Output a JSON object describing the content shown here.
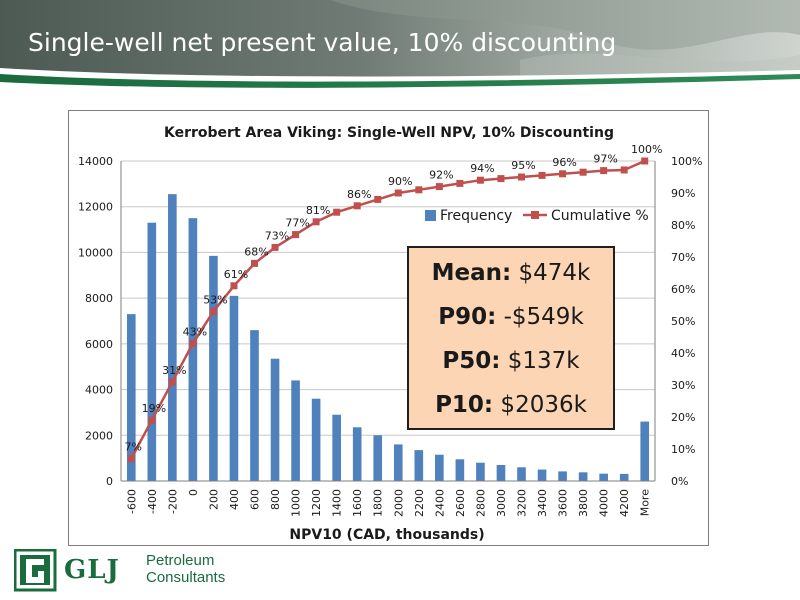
{
  "slide": {
    "title": "Single-well net present value, 10% discounting"
  },
  "chart_data": {
    "type": "bar",
    "title": "Kerrobert Area Viking: Single-Well NPV, 10% Discounting",
    "xlabel": "NPV10 (CAD, thousands)",
    "ylabel": "",
    "ylim": [
      0,
      14000
    ],
    "y2lim": [
      0,
      1
    ],
    "yticks": [
      "0",
      "2000",
      "4000",
      "6000",
      "8000",
      "10000",
      "12000",
      "14000"
    ],
    "y2ticks": [
      "0%",
      "10%",
      "20%",
      "30%",
      "40%",
      "50%",
      "60%",
      "70%",
      "80%",
      "90%",
      "100%"
    ],
    "grid": true,
    "legend_position": "top-right",
    "categories": [
      "-600",
      "-400",
      "-200",
      "0",
      "200",
      "400",
      "600",
      "800",
      "1000",
      "1200",
      "1400",
      "1600",
      "1800",
      "2000",
      "2200",
      "2400",
      "2600",
      "2800",
      "3000",
      "3200",
      "3400",
      "3600",
      "3800",
      "4000",
      "4200",
      "More"
    ],
    "series": [
      {
        "name": "Frequency",
        "type": "bar",
        "color": "#4f81bd",
        "axis": "left",
        "values": [
          7300,
          11300,
          12550,
          11500,
          9850,
          8100,
          6600,
          5350,
          4400,
          3600,
          2900,
          2350,
          2000,
          1600,
          1350,
          1150,
          950,
          800,
          700,
          600,
          500,
          420,
          380,
          320,
          310,
          2600
        ]
      },
      {
        "name": "Cumulative %",
        "type": "line",
        "color": "#c0504d",
        "axis": "right",
        "values": [
          0.07,
          0.19,
          0.31,
          0.43,
          0.53,
          0.61,
          0.68,
          0.73,
          0.77,
          0.81,
          0.84,
          0.86,
          0.88,
          0.9,
          0.91,
          0.92,
          0.93,
          0.94,
          0.945,
          0.95,
          0.955,
          0.96,
          0.965,
          0.97,
          0.972,
          1.0
        ],
        "data_labels": [
          "7%",
          "19%",
          "31%",
          "43%",
          "53%",
          "61%",
          "68%",
          "73%",
          "77%",
          "81%",
          "",
          "86%",
          "",
          "90%",
          "",
          "92%",
          "",
          "94%",
          "",
          "95%",
          "",
          "96%",
          "",
          "97%",
          "",
          "100%"
        ]
      }
    ]
  },
  "stats": {
    "mean_label": "Mean:",
    "mean_value": " $474k",
    "p90_label": "P90:",
    "p90_value": " -$549k",
    "p50_label": "P50:",
    "p50_value": " $137k",
    "p10_label": "P10:",
    "p10_value": " $2036k"
  },
  "logo": {
    "word": "GLJ",
    "line1": "Petroleum",
    "line2": "Consultants"
  },
  "colors": {
    "banner_dark": "#3b4a44",
    "banner_green": "#1a6b3e",
    "stats_fill": "#fcd5b4"
  }
}
